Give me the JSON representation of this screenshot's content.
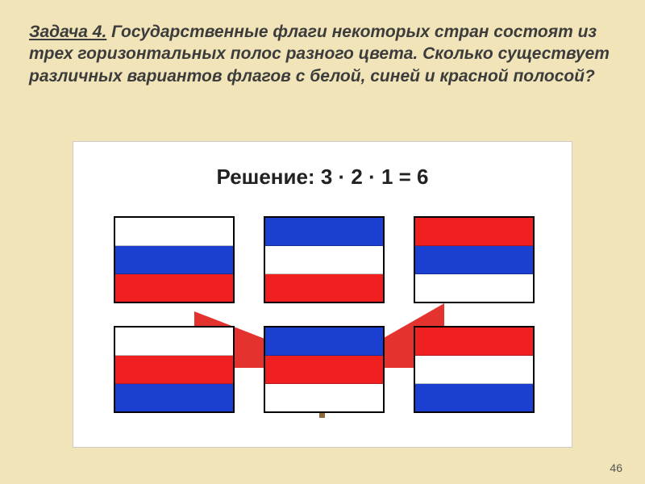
{
  "problem": {
    "number": "Задача 4.",
    "text": " Государственные флаги некоторых стран состоят из трех горизонтальных полос разного цвета. Сколько существует различных вариантов флагов с белой, синей и красной полосой?"
  },
  "solution": {
    "label": "Решение:   3 · 2 · 1 = 6"
  },
  "colors": {
    "white": "#ffffff",
    "blue": "#1b3fd1",
    "red": "#f02020",
    "page_bg": "#f0e4b8",
    "panel_bg": "#ffffff",
    "text": "#3c3c3c",
    "flag_border": "#000000"
  },
  "flags": [
    {
      "stripes": [
        "white",
        "blue",
        "red"
      ]
    },
    {
      "stripes": [
        "blue",
        "white",
        "red"
      ]
    },
    {
      "stripes": [
        "red",
        "blue",
        "white"
      ]
    },
    {
      "stripes": [
        "white",
        "red",
        "blue"
      ]
    },
    {
      "stripes": [
        "blue",
        "red",
        "white"
      ]
    },
    {
      "stripes": [
        "red",
        "white",
        "blue"
      ]
    }
  ],
  "typography": {
    "problem_fontsize": 21,
    "problem_fontweight": "bold",
    "problem_style": "italic",
    "solution_fontsize": 26,
    "solution_fontweight": "bold"
  },
  "page_number": "46"
}
